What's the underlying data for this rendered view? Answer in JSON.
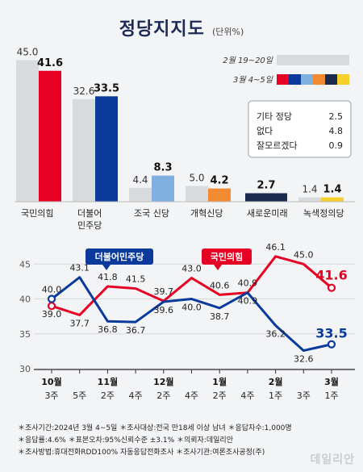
{
  "header": {
    "title": "정당지지도",
    "unit": "(단위%)"
  },
  "chart_data": [
    {
      "type": "bar",
      "categories": [
        "국민의힘",
        "더불어\n민주당",
        "조국 신당",
        "개혁신당",
        "새로운미래",
        "녹색정의당"
      ],
      "series": [
        {
          "name": "2월 19~20일",
          "values": [
            45.0,
            32.6,
            4.4,
            5.0,
            null,
            1.4
          ]
        },
        {
          "name": "3월 4~5일",
          "values": [
            41.6,
            33.5,
            8.3,
            4.2,
            2.7,
            1.4
          ]
        }
      ],
      "value_labels": {
        "2월 19~20일": [
          "45.0",
          "32.6",
          "4.4",
          "5.0",
          "",
          "1.4"
        ],
        "3월 4~5일": [
          "41.6",
          "33.5",
          "8.3",
          "4.2",
          "2.7",
          "1.4"
        ]
      },
      "colors": {
        "previous": "#d9dadc",
        "current": [
          "#e60023",
          "#0a3a9c",
          "#7fb0e0",
          "#f28a30",
          "#1a2b50",
          "#f6cf2a"
        ]
      },
      "legend": [
        "2월 19~20일",
        "3월 4~5일"
      ],
      "others": {
        "items": [
          {
            "label": "기타 정당",
            "value": "2.5"
          },
          {
            "label": "없다",
            "value": "4.8"
          },
          {
            "label": "잘모르겠다",
            "value": "0.9"
          }
        ]
      }
    },
    {
      "type": "line",
      "x": [
        "10월 3주",
        "5주",
        "11월 2주",
        "4주",
        "12월 2주",
        "4주",
        "1월 2주",
        "4주",
        "2월 1주",
        "3주",
        "3월 1주"
      ],
      "x_top": [
        "10월",
        "",
        "11월",
        "",
        "12월",
        "",
        "1월",
        "",
        "2월",
        "",
        "3월"
      ],
      "x_bottom": [
        "3주",
        "5주",
        "2주",
        "4주",
        "2주",
        "4주",
        "2주",
        "4주",
        "1주",
        "3주",
        "1주"
      ],
      "ylim": [
        30,
        47
      ],
      "yticks": [
        30,
        35,
        40,
        45
      ],
      "series": [
        {
          "name": "국민의힘",
          "color": "#e60023",
          "values": [
            39.0,
            37.7,
            41.8,
            41.5,
            39.7,
            43.0,
            40.6,
            40.9,
            46.1,
            45.0,
            41.6
          ],
          "labels": [
            "39.0",
            "37.7",
            "41.8",
            "41.5",
            "39.7",
            "43.0",
            "40.6",
            "40.9",
            "46.1",
            "45.0",
            "41.6"
          ]
        },
        {
          "name": "더불어민주당",
          "color": "#0a3a9c",
          "values": [
            40.0,
            43.1,
            36.8,
            36.7,
            39.6,
            40.0,
            38.7,
            40.9,
            36.2,
            32.6,
            33.5
          ],
          "labels": [
            "40.0",
            "43.1",
            "36.8",
            "36.7",
            "39.6",
            "40.0",
            "38.7",
            "40.9",
            "36.2",
            "32.6",
            "33.5"
          ]
        }
      ]
    }
  ],
  "footnotes": [
    "＊조사기간:2024년 3월 4~5일  ＊조사대상:전국 만18세 이상 남녀  ＊응답자수:1,000명",
    "＊응답률:4.6%  ＊표본오차:95%신뢰수준 ±3.1%  ＊의뢰자:데일리안",
    "＊조사방법:휴대전화RDD100% 자동응답전화조사  ＊조사기관:여론조사공정(주)"
  ],
  "watermark": "데일리안"
}
